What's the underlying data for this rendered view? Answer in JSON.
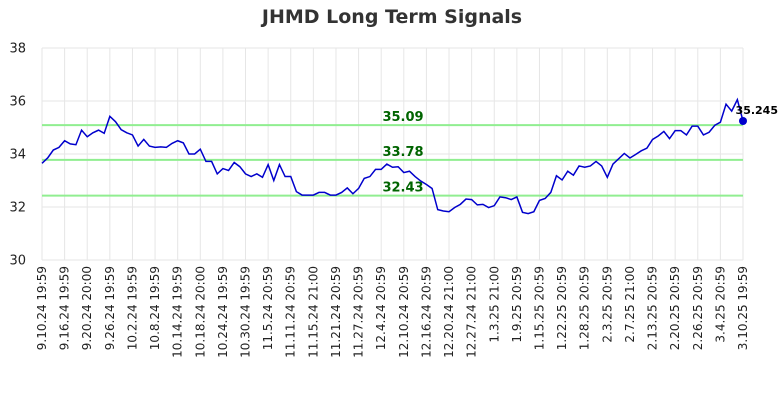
{
  "chart_data": {
    "type": "line",
    "title": "JHMD Long Term Signals",
    "ylim": [
      30,
      38
    ],
    "y_ticks": [
      "30",
      "32",
      "34",
      "36",
      "38"
    ],
    "x_tick_labels": [
      "9.10.24 19:59",
      "9.16.24 19:59",
      "9.20.24 20:00",
      "9.26.24 19:59",
      "10.2.24 19:59",
      "10.8.24 19:59",
      "10.14.24 19:59",
      "10.18.24 20:00",
      "10.24.24 19:59",
      "10.30.24 19:59",
      "11.5.24 20:59",
      "11.11.24 20:59",
      "11.15.24 21:00",
      "11.21.24 20:59",
      "11.27.24 20:59",
      "12.4.24 20:59",
      "12.10.24 20:59",
      "12.16.24 20:59",
      "12.20.24 21:00",
      "12.27.24 21:00",
      "1.3.25 21:00",
      "1.9.25 20:59",
      "1.15.25 20:59",
      "1.22.25 20:59",
      "1.28.25 20:59",
      "2.3.25 20:59",
      "2.7.25 21:00",
      "2.13.25 20:59",
      "2.20.25 20:59",
      "2.26.25 20:59",
      "3.4.25 20:59",
      "3.10.25 19:59"
    ],
    "grid": true,
    "line_color": "#0000cc",
    "signal_color": "#90ee90",
    "signal_lines": [
      {
        "value": 35.09,
        "label": "35.09"
      },
      {
        "value": 33.78,
        "label": "33.78"
      },
      {
        "value": 32.43,
        "label": "32.43"
      }
    ],
    "last_value_label": "35.245",
    "series": [
      {
        "values": [
          33.65,
          33.85,
          34.15,
          34.25,
          34.5,
          34.38,
          34.35,
          34.9,
          34.65,
          34.8,
          34.9,
          34.78,
          35.42,
          35.22,
          34.92,
          34.8,
          34.72,
          34.3,
          34.55,
          34.3,
          34.25,
          34.27,
          34.25,
          34.4,
          34.5,
          34.42,
          34.0,
          34.0,
          34.18,
          33.72,
          33.72,
          33.25,
          33.45,
          33.38,
          33.68,
          33.52,
          33.25,
          33.15,
          33.25,
          33.12,
          33.6,
          33.0,
          33.6,
          33.15,
          33.15,
          32.58,
          32.45,
          32.45,
          32.45,
          32.55,
          32.55,
          32.45,
          32.45,
          32.55,
          32.72,
          32.5,
          32.7,
          33.08,
          33.15,
          33.42,
          33.42,
          33.62,
          33.5,
          33.52,
          33.3,
          33.35,
          33.15,
          32.98,
          32.85,
          32.7,
          31.9,
          31.85,
          31.82,
          31.98,
          32.1,
          32.3,
          32.28,
          32.08,
          32.1,
          31.98,
          32.05,
          32.38,
          32.35,
          32.28,
          32.38,
          31.8,
          31.75,
          31.82,
          32.25,
          32.32,
          32.55,
          33.18,
          33.02,
          33.35,
          33.2,
          33.55,
          33.5,
          33.55,
          33.72,
          33.55,
          33.12,
          33.62,
          33.82,
          34.02,
          33.85,
          33.98,
          34.12,
          34.22,
          34.55,
          34.68,
          34.85,
          34.58,
          34.88,
          34.88,
          34.72,
          35.05,
          35.05,
          34.72,
          34.82,
          35.08,
          35.2,
          35.88,
          35.62,
          36.05,
          35.245
        ]
      }
    ]
  }
}
